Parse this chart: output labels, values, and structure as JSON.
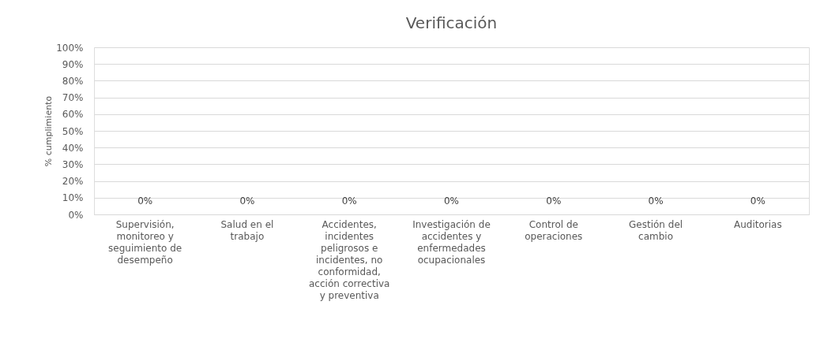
{
  "chart_data": {
    "type": "bar",
    "title": "Verificación",
    "ylabel": "% cumplimiento",
    "categories": [
      "Supervisión, monitoreo y seguimiento de desempeño",
      "Salud en el trabajo",
      "Accidentes, incidentes peligrosos e incidentes, no conformidad, acción correctiva y preventiva",
      "Investigación de accidentes y enfermedades ocupacionales",
      "Control de operaciones",
      "Gestión del cambio",
      "Auditorias"
    ],
    "values": [
      0,
      0,
      0,
      0,
      0,
      0,
      0
    ],
    "value_labels": [
      "0%",
      "0%",
      "0%",
      "0%",
      "0%",
      "0%",
      "0%"
    ],
    "ylim": [
      0,
      100
    ],
    "yticks": [
      {
        "value": 0,
        "label": "0%"
      },
      {
        "value": 10,
        "label": "10%"
      },
      {
        "value": 20,
        "label": "20%"
      },
      {
        "value": 30,
        "label": "30%"
      },
      {
        "value": 40,
        "label": "40%"
      },
      {
        "value": 50,
        "label": "50%"
      },
      {
        "value": 60,
        "label": "60%"
      },
      {
        "value": 70,
        "label": "70%"
      },
      {
        "value": 80,
        "label": "80%"
      },
      {
        "value": 90,
        "label": "90%"
      },
      {
        "value": 100,
        "label": "100%"
      }
    ],
    "grid": "y"
  }
}
